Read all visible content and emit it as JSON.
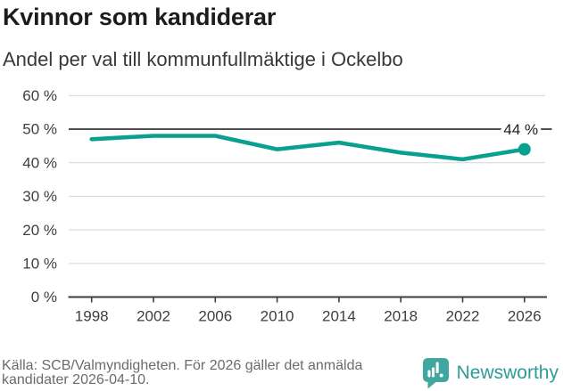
{
  "header": {
    "title": "Kvinnor som kandiderar",
    "subtitle": "Andel per val till kommunfullmäktige i Ockelbo"
  },
  "chart_data": {
    "type": "line",
    "title": "Kvinnor som kandiderar",
    "subtitle": "Andel per val till kommunfullmäktige i Ockelbo",
    "x": [
      1998,
      2002,
      2006,
      2010,
      2014,
      2018,
      2022,
      2026
    ],
    "values": [
      47,
      48,
      48,
      44,
      46,
      43,
      41,
      44
    ],
    "unit": "%",
    "xlabel": "",
    "ylabel": "",
    "ylim": [
      0,
      60
    ],
    "y_ticks": [
      0,
      10,
      20,
      30,
      40,
      50,
      60
    ],
    "y_tick_suffix": " %",
    "reference_line": 50,
    "end_label": "44 %",
    "grid": "horizontal",
    "legend": "none"
  },
  "footer": {
    "source_line1": "Källa: SCB/Valmyndigheten. För 2026 gäller det anmälda",
    "source_line2": "kandidater 2026-04-10.",
    "brand_name": "Newsworthy"
  },
  "colors": {
    "accent": "#0aa091",
    "logo_teal": "#41a6a0",
    "brand_text": "#2d9c96",
    "grid_light": "#dcdcdc",
    "axis_dark": "#3d3d3d",
    "reference_dark": "#4e4e4e",
    "tick_label": "#3f3f3f",
    "title_text": "#1c1c1c",
    "source_text": "#6b6b6b",
    "end_label_text": "#1f1f1f"
  }
}
